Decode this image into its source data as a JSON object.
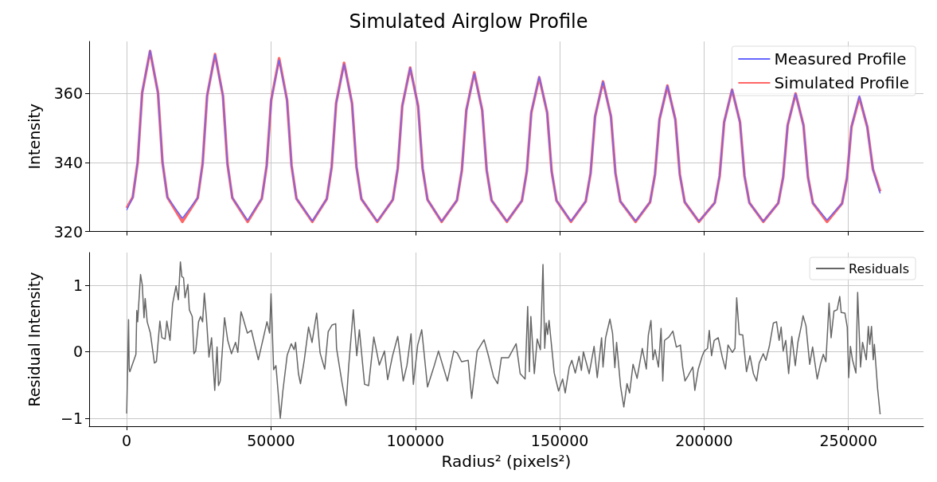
{
  "chart_data": [
    {
      "type": "line",
      "title": "Simulated Airglow Profile",
      "ylabel": "Intensity",
      "x": [
        0,
        2100,
        3800,
        5350,
        8100,
        10850,
        12400,
        14100,
        19300,
        24600,
        26300,
        27850,
        30600,
        33350,
        34900,
        36600,
        41900,
        46800,
        48500,
        50050,
        52800,
        55550,
        57100,
        58800,
        64300,
        69300,
        71000,
        72550,
        75300,
        78050,
        79600,
        81300,
        86800,
        92200,
        93900,
        95450,
        98200,
        100950,
        102500,
        104200,
        109100,
        114400,
        116100,
        117650,
        120400,
        123150,
        124700,
        126400,
        131700,
        136900,
        138600,
        140150,
        142900,
        145650,
        147200,
        148900,
        153900,
        159000,
        160700,
        162250,
        165000,
        167750,
        169300,
        171000,
        176300,
        181300,
        183000,
        184550,
        187300,
        190050,
        191600,
        193300,
        198200,
        203700,
        205400,
        206950,
        209700,
        212450,
        214000,
        215700,
        220500,
        225700,
        227400,
        228950,
        231700,
        234450,
        236000,
        237700,
        242600,
        247800,
        249500,
        251050,
        253800,
        256550,
        258500,
        261000
      ],
      "series": [
        {
          "name": "Measured Profile",
          "color": "#6666ff",
          "values": [
            326.2,
            329.9,
            340.0,
            360.1,
            372.4,
            360.1,
            340.0,
            329.9,
            323.8,
            329.7,
            339.6,
            359.2,
            371.2,
            359.2,
            339.6,
            329.7,
            323.2,
            329.5,
            339.1,
            358.0,
            369.6,
            358.0,
            339.1,
            329.5,
            323.0,
            329.4,
            338.7,
            357.1,
            368.5,
            357.1,
            338.7,
            329.4,
            322.9,
            329.2,
            338.3,
            356.3,
            367.4,
            356.3,
            338.3,
            329.2,
            322.9,
            329.0,
            337.7,
            355.1,
            365.8,
            355.1,
            337.7,
            329.0,
            322.9,
            328.9,
            337.4,
            354.4,
            364.8,
            354.4,
            337.4,
            328.9,
            323.0,
            328.7,
            336.9,
            353.3,
            363.4,
            353.3,
            336.9,
            328.7,
            323.0,
            328.5,
            336.5,
            352.4,
            362.2,
            352.4,
            336.5,
            328.5,
            322.9,
            328.3,
            336.1,
            351.6,
            361.1,
            351.6,
            336.1,
            328.3,
            322.9,
            328.2,
            335.7,
            350.7,
            359.9,
            350.7,
            335.7,
            328.2,
            323.3,
            328.1,
            335.5,
            350.2,
            359.2,
            350.2,
            338.0,
            331.0
          ]
        },
        {
          "name": "Simulated Profile",
          "color": "#ff6666",
          "values": [
            326.8,
            329.9,
            340.0,
            360.1,
            372.2,
            360.1,
            340.0,
            329.9,
            322.8,
            329.7,
            339.6,
            359.2,
            371.3,
            359.2,
            339.6,
            329.7,
            322.8,
            329.5,
            339.1,
            358.0,
            370.1,
            358.0,
            339.1,
            329.5,
            322.8,
            329.4,
            338.7,
            357.1,
            368.8,
            357.1,
            338.7,
            329.4,
            322.8,
            329.2,
            338.3,
            356.3,
            367.4,
            356.3,
            338.3,
            329.2,
            322.8,
            329.0,
            337.7,
            355.1,
            366.0,
            355.1,
            337.7,
            329.0,
            322.8,
            328.9,
            337.4,
            354.4,
            364.6,
            354.4,
            337.4,
            328.9,
            322.8,
            328.7,
            336.9,
            353.3,
            363.4,
            353.3,
            336.9,
            328.7,
            322.8,
            328.5,
            336.5,
            352.4,
            362.2,
            352.4,
            336.5,
            328.5,
            322.8,
            328.3,
            336.1,
            351.6,
            361.0,
            351.6,
            336.1,
            328.3,
            322.8,
            328.2,
            335.7,
            350.7,
            359.9,
            350.7,
            335.7,
            328.2,
            322.8,
            328.1,
            335.5,
            350.2,
            358.8,
            350.2,
            338.0,
            331.6
          ]
        }
      ],
      "xlim": [
        -13000,
        276000
      ],
      "xticks": [
        0,
        50000,
        100000,
        150000,
        200000,
        250000
      ],
      "ylim": [
        320,
        375
      ],
      "yticks": [
        320,
        340,
        360
      ],
      "grid": true,
      "legend": "top right",
      "tick_labels": "y"
    },
    {
      "type": "line",
      "xlabel": "Radius² (pixels²)",
      "ylabel": "Residual Intensity",
      "x": [
        0,
        640,
        870,
        1100,
        3200,
        3500,
        3800,
        4800,
        5400,
        6000,
        6400,
        7100,
        8200,
        9600,
        10300,
        11500,
        12200,
        13300,
        13900,
        15000,
        15900,
        17100,
        17900,
        18600,
        19100,
        19700,
        20200,
        21200,
        21700,
        22700,
        23300,
        23900,
        24900,
        25600,
        26300,
        26900,
        27600,
        28500,
        29400,
        30500,
        31300,
        31800,
        32400,
        33900,
        35000,
        36300,
        37700,
        38500,
        39600,
        40200,
        41800,
        43200,
        45600,
        47400,
        48600,
        49500,
        50000,
        50900,
        51700,
        53200,
        54100,
        55600,
        57000,
        58000,
        58500,
        59500,
        60200,
        61500,
        63000,
        64200,
        65800,
        67000,
        68600,
        69800,
        71100,
        72400,
        72700,
        74600,
        76000,
        76900,
        78500,
        79700,
        80600,
        82400,
        83800,
        85600,
        87500,
        89300,
        90400,
        92100,
        93900,
        95800,
        97100,
        98500,
        99300,
        100800,
        102200,
        104200,
        106600,
        108000,
        111100,
        113300,
        114500,
        116000,
        118300,
        119500,
        121400,
        123800,
        125300,
        127100,
        128500,
        129800,
        132300,
        134900,
        136300,
        138000,
        138900,
        139500,
        140000,
        141200,
        142200,
        143300,
        144200,
        144800,
        145300,
        145800,
        146300,
        148100,
        149600,
        151000,
        151900,
        153300,
        154200,
        155400,
        156700,
        157500,
        158200,
        160200,
        161900,
        163000,
        164500,
        165000,
        165900,
        167400,
        168300,
        169100,
        169700,
        171100,
        172200,
        173300,
        174200,
        175400,
        176800,
        178600,
        180000,
        180700,
        181600,
        182300,
        183000,
        184200,
        185100,
        185700,
        186300,
        187800,
        189200,
        190400,
        191800,
        192600,
        193400,
        194500,
        196100,
        196800,
        198000,
        199400,
        200100,
        201200,
        201800,
        202600,
        203500,
        204900,
        206300,
        207400,
        208300,
        209800,
        210700,
        211300,
        212200,
        213400,
        214700,
        215900,
        217100,
        218200,
        219100,
        220500,
        221400,
        222600,
        224000,
        225100,
        226000,
        226700,
        227400,
        228300,
        229300,
        230400,
        231600,
        232500,
        233700,
        234300,
        235300,
        236600,
        237600,
        239200,
        240300,
        241300,
        242200,
        243300,
        244000,
        245000,
        246100,
        247000,
        247500,
        248800,
        249600,
        250100,
        250700,
        251400,
        252600,
        253200,
        254200,
        254900,
        256200,
        256900,
        257400,
        258000,
        258600,
        259000,
        260100,
        261000
      ],
      "series": [
        {
          "name": "Residuals",
          "color": "#666666",
          "values": [
            -0.93,
            0.48,
            -0.26,
            -0.3,
            -0.04,
            0.62,
            0.45,
            1.16,
            1.0,
            0.51,
            0.8,
            0.45,
            0.28,
            -0.17,
            -0.15,
            0.46,
            0.21,
            0.19,
            0.46,
            0.17,
            0.72,
            0.99,
            0.78,
            1.35,
            1.13,
            1.11,
            0.81,
            1.01,
            0.63,
            0.53,
            -0.03,
            0.01,
            0.45,
            0.53,
            0.45,
            0.88,
            0.52,
            -0.08,
            0.21,
            -0.58,
            0.07,
            -0.51,
            -0.44,
            0.51,
            0.17,
            -0.03,
            0.14,
            -0.01,
            0.6,
            0.52,
            0.28,
            0.32,
            -0.12,
            0.22,
            0.45,
            0.28,
            0.87,
            -0.27,
            -0.21,
            -1.0,
            -0.59,
            -0.05,
            0.12,
            0.03,
            0.14,
            -0.33,
            -0.48,
            -0.13,
            0.37,
            0.14,
            0.58,
            -0.02,
            -0.26,
            0.3,
            0.4,
            0.42,
            0.05,
            -0.47,
            -0.81,
            -0.22,
            0.63,
            -0.06,
            0.33,
            -0.49,
            -0.51,
            0.22,
            -0.2,
            0.01,
            -0.42,
            -0.06,
            0.23,
            -0.44,
            -0.2,
            0.27,
            -0.49,
            0.1,
            0.33,
            -0.53,
            -0.2,
            0.01,
            -0.44,
            0.01,
            -0.02,
            -0.15,
            -0.13,
            -0.7,
            0.01,
            0.18,
            -0.06,
            -0.38,
            -0.48,
            -0.09,
            -0.09,
            0.12,
            -0.33,
            -0.41,
            0.68,
            -0.3,
            0.53,
            -0.33,
            0.19,
            0.03,
            1.31,
            0.05,
            0.43,
            0.26,
            0.47,
            -0.32,
            -0.59,
            -0.41,
            -0.62,
            -0.23,
            -0.13,
            -0.32,
            -0.07,
            -0.28,
            0.0,
            -0.33,
            0.08,
            -0.39,
            0.21,
            -0.23,
            0.21,
            0.49,
            0.28,
            -0.24,
            0.14,
            -0.53,
            -0.83,
            -0.48,
            -0.62,
            -0.19,
            -0.4,
            0.05,
            -0.26,
            0.25,
            0.47,
            -0.12,
            0.03,
            -0.23,
            0.35,
            -0.44,
            0.17,
            0.22,
            0.31,
            0.07,
            0.1,
            -0.23,
            -0.44,
            -0.36,
            -0.23,
            -0.58,
            -0.26,
            -0.06,
            0.01,
            0.05,
            0.32,
            -0.06,
            0.17,
            0.21,
            -0.08,
            -0.26,
            0.1,
            -0.01,
            0.05,
            0.81,
            0.26,
            0.25,
            -0.3,
            -0.06,
            -0.33,
            -0.44,
            -0.17,
            -0.03,
            -0.13,
            0.08,
            0.43,
            0.45,
            0.17,
            0.37,
            0.01,
            0.17,
            -0.33,
            0.23,
            -0.21,
            0.14,
            0.39,
            0.54,
            0.39,
            -0.19,
            0.07,
            -0.41,
            -0.19,
            -0.04,
            -0.15,
            0.73,
            0.21,
            0.61,
            0.63,
            0.83,
            0.59,
            0.58,
            0.37,
            -0.39,
            0.08,
            -0.12,
            -0.32,
            0.89,
            -0.23,
            0.14,
            -0.12,
            0.38,
            0.11,
            0.38,
            -0.12,
            0.11,
            -0.55,
            -0.94
          ]
        }
      ],
      "xlim": [
        -13000,
        276000
      ],
      "xticks": [
        0,
        50000,
        100000,
        150000,
        200000,
        250000
      ],
      "ylim": [
        -1.12,
        1.49
      ],
      "yticks": [
        {
          "value": -1,
          "label": "−1"
        },
        0,
        1
      ],
      "grid": true,
      "legend": "top right"
    }
  ]
}
